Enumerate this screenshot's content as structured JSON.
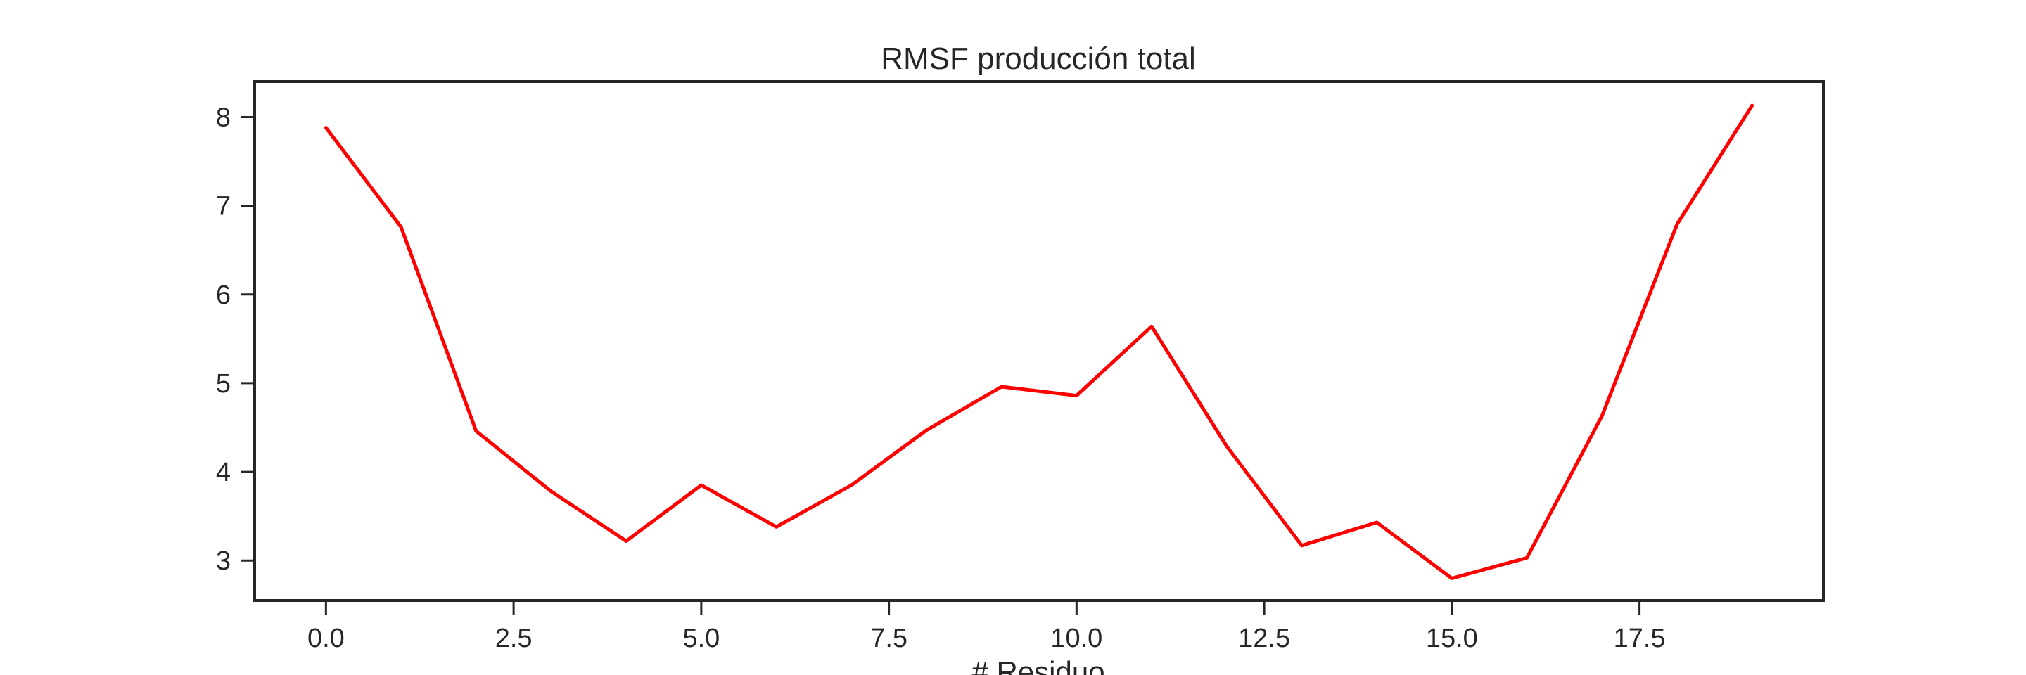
{
  "chart_data": {
    "type": "line",
    "title": "RMSF producción total",
    "xlabel": "# Residuo",
    "ylabel": "",
    "xlim": [
      -0.95,
      19.95
    ],
    "ylim": [
      2.55,
      8.4
    ],
    "x_ticks": [
      0.0,
      2.5,
      5.0,
      7.5,
      10.0,
      12.5,
      15.0,
      17.5
    ],
    "x_tick_labels": [
      "0.0",
      "2.5",
      "5.0",
      "7.5",
      "10.0",
      "12.5",
      "15.0",
      "17.5"
    ],
    "y_ticks": [
      3,
      4,
      5,
      6,
      7,
      8
    ],
    "y_tick_labels": [
      "3",
      "4",
      "5",
      "6",
      "7",
      "8"
    ],
    "grid": false,
    "series": [
      {
        "color": "#ff0000",
        "x": [
          0,
          1,
          2,
          3,
          4,
          5,
          6,
          7,
          8,
          9,
          10,
          11,
          12,
          13,
          14,
          15,
          16,
          17,
          18,
          19
        ],
        "y": [
          7.88,
          6.76,
          4.46,
          3.78,
          3.22,
          3.85,
          3.38,
          3.85,
          4.47,
          4.96,
          4.86,
          5.64,
          4.29,
          3.17,
          3.43,
          2.8,
          3.03,
          4.63,
          6.79,
          8.13
        ]
      }
    ]
  }
}
